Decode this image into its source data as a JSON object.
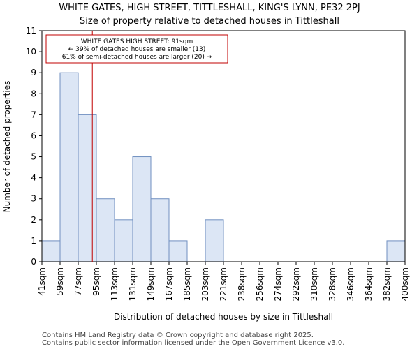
{
  "chart_data": {
    "type": "bar",
    "title_line1": "WHITE GATES, HIGH STREET, TITTLESHALL, KING'S LYNN, PE32 2PJ",
    "title_line2": "Size of property relative to detached houses in Tittleshall",
    "xlabel": "Distribution of detached houses by size in Tittleshall",
    "ylabel": "Number of detached properties",
    "bin_edges": [
      41,
      59,
      77,
      95,
      113,
      131,
      149,
      167,
      185,
      203,
      221,
      238,
      256,
      274,
      292,
      310,
      328,
      346,
      364,
      382,
      400
    ],
    "tick_labels": [
      "41sqm",
      "59sqm",
      "77sqm",
      "95sqm",
      "113sqm",
      "131sqm",
      "149sqm",
      "167sqm",
      "185sqm",
      "203sqm",
      "221sqm",
      "238sqm",
      "256sqm",
      "274sqm",
      "292sqm",
      "310sqm",
      "328sqm",
      "346sqm",
      "364sqm",
      "382sqm",
      "400sqm"
    ],
    "values": [
      1,
      9,
      7,
      3,
      2,
      5,
      3,
      1,
      0,
      2,
      0,
      0,
      0,
      0,
      0,
      0,
      0,
      0,
      0,
      1
    ],
    "ylim": [
      0,
      11
    ],
    "yticks": [
      0,
      1,
      2,
      3,
      4,
      5,
      6,
      7,
      8,
      9,
      10,
      11
    ],
    "grid": false,
    "bar_color": "#dce6f5",
    "bar_edge_color": "#6f8fc0",
    "marker_value": 91,
    "marker_color": "#c00000",
    "annotation": {
      "line1": "WHITE GATES HIGH STREET: 91sqm",
      "line2": "← 39% of detached houses are smaller (13)",
      "line3": "61% of semi-detached houses are larger (20) →"
    }
  },
  "footer": {
    "line1": "Contains HM Land Registry data © Crown copyright and database right 2025.",
    "line2": "Contains public sector information licensed under the Open Government Licence v3.0."
  }
}
